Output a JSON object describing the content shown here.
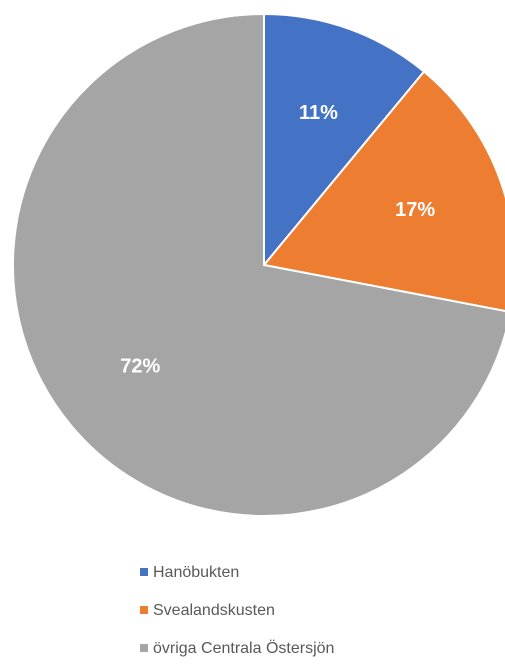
{
  "chart_data": {
    "type": "pie",
    "categories": [
      "Hanöbukten",
      "Svealandskusten",
      "övriga Centrala Östersjön"
    ],
    "values": [
      11,
      17,
      72
    ],
    "value_labels": [
      "11%",
      "17%",
      "72%"
    ],
    "colors": [
      "#4472c4",
      "#ed7d31",
      "#a5a5a5"
    ]
  }
}
